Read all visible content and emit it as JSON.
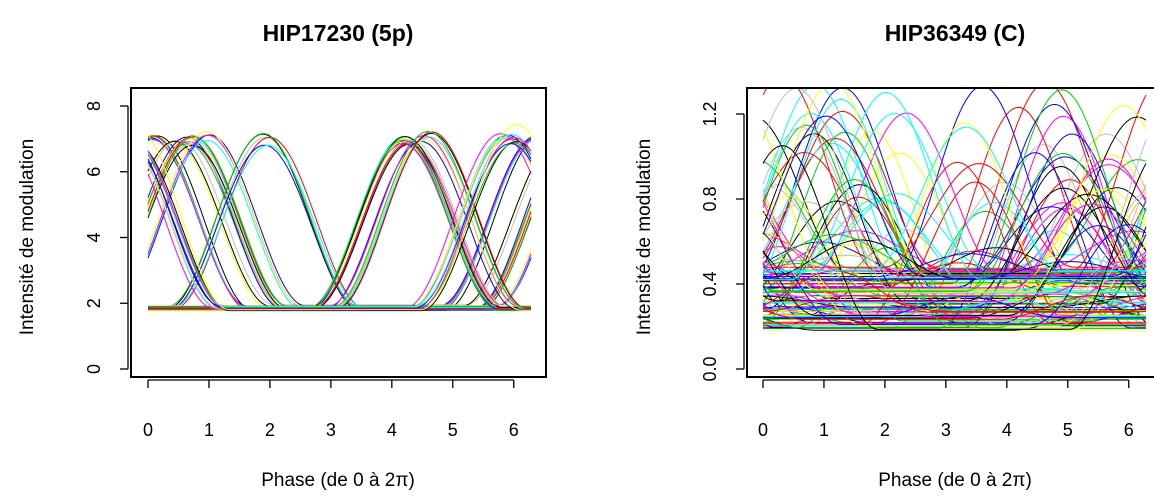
{
  "chart_data": [
    {
      "type": "line",
      "title": "HIP17230 (5p)",
      "xlabel": "Phase (de 0 à 2π)",
      "ylabel": "Intensité de modulation",
      "xlim": [
        0,
        6.2832
      ],
      "ylim": [
        0,
        8
      ],
      "xticks": [
        "0",
        "1",
        "2",
        "3",
        "4",
        "5",
        "6"
      ],
      "yticks": [
        "0",
        "2",
        "4",
        "6",
        "8"
      ],
      "grid": false,
      "legend": "none",
      "series_model": "y = baseline + amplitude * max(0, cos(x - center))^2",
      "series": [
        {
          "center": 0.1,
          "amplitude": 5.2,
          "baseline": 1.85,
          "count": 6
        },
        {
          "center": 0.45,
          "amplitude": 5.1,
          "baseline": 1.9,
          "count": 3
        },
        {
          "center": 0.7,
          "amplitude": 5.1,
          "baseline": 1.85,
          "count": 10
        },
        {
          "center": 1.0,
          "amplitude": 5.2,
          "baseline": 1.85,
          "count": 4
        },
        {
          "center": 1.95,
          "amplitude": 5.2,
          "baseline": 1.85,
          "count": 4
        },
        {
          "center": 1.95,
          "amplitude": 4.9,
          "baseline": 1.85,
          "count": 2
        },
        {
          "center": 4.25,
          "amplitude": 5.1,
          "baseline": 1.85,
          "count": 14
        },
        {
          "center": 4.55,
          "amplitude": 5.2,
          "baseline": 1.85,
          "count": 5
        },
        {
          "center": 4.6,
          "amplitude": 5.3,
          "baseline": 1.85,
          "count": 3
        },
        {
          "center": 5.85,
          "amplitude": 5.2,
          "baseline": 1.85,
          "count": 5
        },
        {
          "center": 6.0,
          "amplitude": 5.1,
          "baseline": 1.85,
          "count": 6
        },
        {
          "center": 6.1,
          "amplitude": 5.6,
          "baseline": 1.85,
          "count": 1
        }
      ]
    },
    {
      "type": "line",
      "title": "HIP36349 (C)",
      "xlabel": "Phase (de 0 à 2π)",
      "ylabel": "Intensité de modulation",
      "xlim": [
        0,
        6.2832
      ],
      "ylim": [
        0,
        1.28
      ],
      "xticks": [
        "0",
        "1",
        "2",
        "3",
        "4",
        "5",
        "6"
      ],
      "yticks": [
        "0.0",
        "0.4",
        "0.8",
        "1.2"
      ],
      "grid": false,
      "legend": "none",
      "series_model": "y = baseline + amplitude * max(0, cos(x - center))^2",
      "series_summary": {
        "count": 130,
        "baseline_range": [
          0.18,
          0.48
        ],
        "amplitude_range": [
          0.05,
          0.95
        ],
        "center_clusters": [
          0.6,
          1.2,
          2.0,
          3.6,
          4.6,
          5.2,
          6.0
        ]
      }
    }
  ],
  "palette": [
    "#000000",
    "#ff0000",
    "#00cd00",
    "#0000ff",
    "#00ffff",
    "#ff00ff",
    "#ffff00",
    "#bebebe"
  ]
}
